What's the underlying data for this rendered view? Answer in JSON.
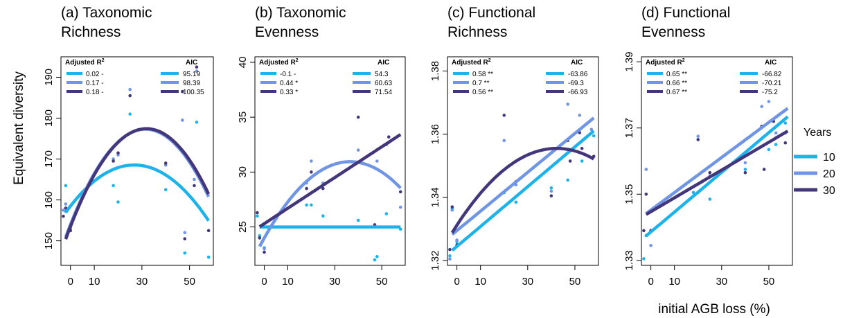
{
  "colors": {
    "10": "#1bb3ea",
    "20": "#6f95e4",
    "30": "#43367a"
  },
  "labels": {
    "ylabel": "Equivalent diversity",
    "xlabel": "initial AGB loss (%)",
    "legend_title": "Years",
    "r2_header": "Adjusted R",
    "r2_sup": "2",
    "aic_header": "AIC"
  },
  "years_legend": [
    "10",
    "20",
    "30"
  ],
  "chart_data": [
    {
      "type": "scatter",
      "title_lines": [
        "(a) Taxonomic",
        "Richness"
      ],
      "xlim": [
        -4,
        60
      ],
      "ylim": [
        144,
        195
      ],
      "xticks": [
        0,
        10,
        30,
        50
      ],
      "yticks": [
        150,
        160,
        170,
        180,
        190
      ],
      "legend": [
        {
          "year": "10",
          "r2": "0.02 -",
          "aic": "95.19"
        },
        {
          "year": "20",
          "r2": "0.17 -",
          "aic": "98.39"
        },
        {
          "year": "30",
          "r2": "0.18 -",
          "aic": "100.35"
        }
      ],
      "fits": [
        {
          "year": "10",
          "kind": "poly",
          "coef": [
            158.5,
            0.75,
            -0.014
          ]
        },
        {
          "year": "20",
          "kind": "poly",
          "coef": [
            154,
            1.48,
            -0.0235
          ]
        },
        {
          "year": "30",
          "kind": "poly",
          "coef": [
            153.5,
            1.5,
            -0.0235
          ]
        }
      ],
      "points": [
        {
          "year": "10",
          "x": -2,
          "y": 157.2
        },
        {
          "year": "10",
          "x": -2,
          "y": 163.5
        },
        {
          "year": "10",
          "x": 0,
          "y": 154
        },
        {
          "year": "10",
          "x": 18,
          "y": 163.5
        },
        {
          "year": "10",
          "x": 20,
          "y": 159.5
        },
        {
          "year": "10",
          "x": 25,
          "y": 181
        },
        {
          "year": "10",
          "x": 40,
          "y": 162.5
        },
        {
          "year": "10",
          "x": 48,
          "y": 147
        },
        {
          "year": "10",
          "x": 53,
          "y": 179
        },
        {
          "year": "10",
          "x": 58,
          "y": 146
        },
        {
          "year": "20",
          "x": -3,
          "y": 157.5
        },
        {
          "year": "20",
          "x": -2,
          "y": 159
        },
        {
          "year": "20",
          "x": 0,
          "y": 153
        },
        {
          "year": "20",
          "x": 18,
          "y": 170
        },
        {
          "year": "20",
          "x": 20,
          "y": 171
        },
        {
          "year": "20",
          "x": 25,
          "y": 187
        },
        {
          "year": "20",
          "x": 40,
          "y": 168.5
        },
        {
          "year": "20",
          "x": 47,
          "y": 179.5
        },
        {
          "year": "20",
          "x": 48,
          "y": 152
        },
        {
          "year": "20",
          "x": 52,
          "y": 165
        },
        {
          "year": "20",
          "x": 53,
          "y": 191.5
        },
        {
          "year": "30",
          "x": -3,
          "y": 156
        },
        {
          "year": "30",
          "x": -2,
          "y": 158
        },
        {
          "year": "30",
          "x": 0,
          "y": 152.5
        },
        {
          "year": "30",
          "x": 18,
          "y": 169.5
        },
        {
          "year": "30",
          "x": 20,
          "y": 171.5
        },
        {
          "year": "30",
          "x": 25,
          "y": 185.5
        },
        {
          "year": "30",
          "x": 40,
          "y": 169
        },
        {
          "year": "30",
          "x": 47,
          "y": 186.5
        },
        {
          "year": "30",
          "x": 48,
          "y": 150.5
        },
        {
          "year": "30",
          "x": 52,
          "y": 163.5
        },
        {
          "year": "30",
          "x": 53,
          "y": 192.5
        },
        {
          "year": "30",
          "x": 58,
          "y": 152.5
        }
      ]
    },
    {
      "type": "scatter",
      "title_lines": [
        "(b) Taxonomic",
        "Evenness"
      ],
      "xlim": [
        -4,
        60
      ],
      "ylim": [
        21.5,
        40.5
      ],
      "xticks": [
        0,
        10,
        30,
        50
      ],
      "yticks": [
        25,
        30,
        35,
        40
      ],
      "legend": [
        {
          "year": "10",
          "r2": "-0.1 -",
          "aic": "54.3"
        },
        {
          "year": "20",
          "r2": "0.44 *",
          "aic": "60.63"
        },
        {
          "year": "30",
          "r2": "0.33 *",
          "aic": "71.54"
        }
      ],
      "fits": [
        {
          "year": "10",
          "kind": "poly",
          "coef": [
            25,
            0,
            0
          ]
        },
        {
          "year": "20",
          "kind": "poly",
          "coef": [
            24,
            0.38,
            -0.0052
          ]
        },
        {
          "year": "30",
          "kind": "poly",
          "coef": [
            25.3,
            0.14,
            0
          ]
        }
      ],
      "points": [
        {
          "year": "10",
          "x": -3,
          "y": 26
        },
        {
          "year": "10",
          "x": -2,
          "y": 24.2
        },
        {
          "year": "10",
          "x": 0,
          "y": 23.1
        },
        {
          "year": "10",
          "x": 18,
          "y": 27
        },
        {
          "year": "10",
          "x": 20,
          "y": 27
        },
        {
          "year": "10",
          "x": 25,
          "y": 26
        },
        {
          "year": "10",
          "x": 40,
          "y": 25.6
        },
        {
          "year": "10",
          "x": 47,
          "y": 22
        },
        {
          "year": "10",
          "x": 48,
          "y": 22.3
        },
        {
          "year": "10",
          "x": 52,
          "y": 26.2
        },
        {
          "year": "10",
          "x": 58,
          "y": 24.8
        },
        {
          "year": "20",
          "x": -2,
          "y": 24
        },
        {
          "year": "20",
          "x": 0,
          "y": 23
        },
        {
          "year": "20",
          "x": 18,
          "y": 29
        },
        {
          "year": "20",
          "x": 20,
          "y": 31
        },
        {
          "year": "20",
          "x": 25,
          "y": 29
        },
        {
          "year": "20",
          "x": 40,
          "y": 32
        },
        {
          "year": "20",
          "x": 48,
          "y": 31
        },
        {
          "year": "20",
          "x": 52,
          "y": 32.5
        },
        {
          "year": "20",
          "x": 58,
          "y": 26.8
        },
        {
          "year": "30",
          "x": -3,
          "y": 26.3
        },
        {
          "year": "30",
          "x": -2,
          "y": 24
        },
        {
          "year": "30",
          "x": 0,
          "y": 22.7
        },
        {
          "year": "30",
          "x": 18,
          "y": 28.5
        },
        {
          "year": "30",
          "x": 20,
          "y": 30
        },
        {
          "year": "30",
          "x": 25,
          "y": 28.5
        },
        {
          "year": "30",
          "x": 40,
          "y": 35
        },
        {
          "year": "30",
          "x": 47,
          "y": 25.2
        },
        {
          "year": "30",
          "x": 53,
          "y": 33.2
        },
        {
          "year": "30",
          "x": 58,
          "y": 28.2
        }
      ]
    },
    {
      "type": "scatter",
      "title_lines": [
        "(c) Functional",
        "Richness"
      ],
      "xlim": [
        -4,
        60
      ],
      "ylim": [
        1.3185,
        1.3845
      ],
      "xticks": [
        0,
        10,
        30,
        50
      ],
      "yticks": [
        1.32,
        1.34,
        1.36,
        1.38
      ],
      "legend": [
        {
          "year": "10",
          "r2": "0.58 **",
          "aic": "-63.86"
        },
        {
          "year": "20",
          "r2": "0.7 **",
          "aic": "-69.3"
        },
        {
          "year": "30",
          "r2": "0.56 **",
          "aic": "-66.93"
        }
      ],
      "fits": [
        {
          "year": "10",
          "kind": "poly",
          "coef": [
            1.3245,
            0.00063,
            0
          ]
        },
        {
          "year": "20",
          "kind": "poly",
          "coef": [
            1.3295,
            0.000615,
            0
          ]
        },
        {
          "year": "30",
          "kind": "poly",
          "coef": [
            1.3312,
            0.00115,
            -1.36e-05
          ]
        }
      ],
      "points": [
        {
          "year": "10",
          "x": -3,
          "y": 1.3215
        },
        {
          "year": "10",
          "x": -2,
          "y": 1.3365
        },
        {
          "year": "10",
          "x": 0,
          "y": 1.326
        },
        {
          "year": "10",
          "x": 20,
          "y": 1.3415
        },
        {
          "year": "10",
          "x": 25,
          "y": 1.3385
        },
        {
          "year": "10",
          "x": 40,
          "y": 1.343
        },
        {
          "year": "10",
          "x": 47,
          "y": 1.3455
        },
        {
          "year": "10",
          "x": 53,
          "y": 1.3515
        },
        {
          "year": "10",
          "x": 58,
          "y": 1.3595
        },
        {
          "year": "20",
          "x": -3,
          "y": 1.3205
        },
        {
          "year": "20",
          "x": -2,
          "y": 1.336
        },
        {
          "year": "20",
          "x": 0,
          "y": 1.3265
        },
        {
          "year": "20",
          "x": 20,
          "y": 1.358
        },
        {
          "year": "20",
          "x": 25,
          "y": 1.344
        },
        {
          "year": "20",
          "x": 40,
          "y": 1.342
        },
        {
          "year": "20",
          "x": 47,
          "y": 1.3695
        },
        {
          "year": "20",
          "x": 52,
          "y": 1.366
        },
        {
          "year": "20",
          "x": 57,
          "y": 1.3615
        },
        {
          "year": "30",
          "x": -3,
          "y": 1.3235
        },
        {
          "year": "30",
          "x": -2,
          "y": 1.337
        },
        {
          "year": "30",
          "x": 0,
          "y": 1.325
        },
        {
          "year": "30",
          "x": 20,
          "y": 1.366
        },
        {
          "year": "30",
          "x": 25,
          "y": 1.345
        },
        {
          "year": "30",
          "x": 40,
          "y": 1.3405
        },
        {
          "year": "30",
          "x": 47,
          "y": 1.358
        },
        {
          "year": "30",
          "x": 48,
          "y": 1.3515
        },
        {
          "year": "30",
          "x": 52,
          "y": 1.3605
        },
        {
          "year": "30",
          "x": 53,
          "y": 1.3555
        },
        {
          "year": "30",
          "x": 58,
          "y": 1.353
        }
      ]
    },
    {
      "type": "scatter",
      "title_lines": [
        "(d) Functional",
        "Evenness"
      ],
      "xlim": [
        -4,
        60
      ],
      "ylim": [
        1.3285,
        1.3915
      ],
      "xticks": [
        0,
        10,
        30,
        50
      ],
      "yticks": [
        1.33,
        1.35,
        1.37,
        1.39
      ],
      "legend": [
        {
          "year": "10",
          "r2": "0.65 **",
          "aic": "-66.82"
        },
        {
          "year": "20",
          "r2": "0.66 **",
          "aic": "-70.21"
        },
        {
          "year": "30",
          "r2": "0.67 **",
          "aic": "-75.2"
        }
      ],
      "fits": [
        {
          "year": "10",
          "kind": "poly",
          "coef": [
            1.3386,
            0.0006,
            0
          ]
        },
        {
          "year": "20",
          "kind": "poly",
          "coef": [
            1.3452,
            0.00053,
            0
          ]
        },
        {
          "year": "30",
          "kind": "poly",
          "coef": [
            1.3447,
            0.00042,
            0
          ]
        }
      ],
      "points": [
        {
          "year": "10",
          "x": -3,
          "y": 1.3305
        },
        {
          "year": "10",
          "x": -2,
          "y": 1.3375
        },
        {
          "year": "10",
          "x": 0,
          "y": 1.339
        },
        {
          "year": "10",
          "x": 18,
          "y": 1.3505
        },
        {
          "year": "10",
          "x": 20,
          "y": 1.3505
        },
        {
          "year": "10",
          "x": 25,
          "y": 1.3485
        },
        {
          "year": "10",
          "x": 40,
          "y": 1.3575
        },
        {
          "year": "10",
          "x": 47,
          "y": 1.3645
        },
        {
          "year": "10",
          "x": 50,
          "y": 1.3635
        },
        {
          "year": "10",
          "x": 53,
          "y": 1.365
        },
        {
          "year": "10",
          "x": 57,
          "y": 1.3715
        },
        {
          "year": "20",
          "x": -2,
          "y": 1.3575
        },
        {
          "year": "20",
          "x": 0,
          "y": 1.3345
        },
        {
          "year": "20",
          "x": 20,
          "y": 1.3675
        },
        {
          "year": "20",
          "x": 25,
          "y": 1.3555
        },
        {
          "year": "20",
          "x": 40,
          "y": 1.3595
        },
        {
          "year": "20",
          "x": 47,
          "y": 1.3765
        },
        {
          "year": "20",
          "x": 50,
          "y": 1.378
        },
        {
          "year": "20",
          "x": 53,
          "y": 1.3685
        },
        {
          "year": "20",
          "x": 57,
          "y": 1.3685
        },
        {
          "year": "30",
          "x": -3,
          "y": 1.339
        },
        {
          "year": "30",
          "x": -2,
          "y": 1.35
        },
        {
          "year": "30",
          "x": 0,
          "y": 1.339
        },
        {
          "year": "30",
          "x": 20,
          "y": 1.3665
        },
        {
          "year": "30",
          "x": 25,
          "y": 1.3565
        },
        {
          "year": "30",
          "x": 40,
          "y": 1.3565
        },
        {
          "year": "30",
          "x": 47,
          "y": 1.3705
        },
        {
          "year": "30",
          "x": 48,
          "y": 1.3575
        },
        {
          "year": "30",
          "x": 52,
          "y": 1.372
        },
        {
          "year": "30",
          "x": 53,
          "y": 1.367
        },
        {
          "year": "30",
          "x": 57,
          "y": 1.3655
        }
      ]
    }
  ]
}
